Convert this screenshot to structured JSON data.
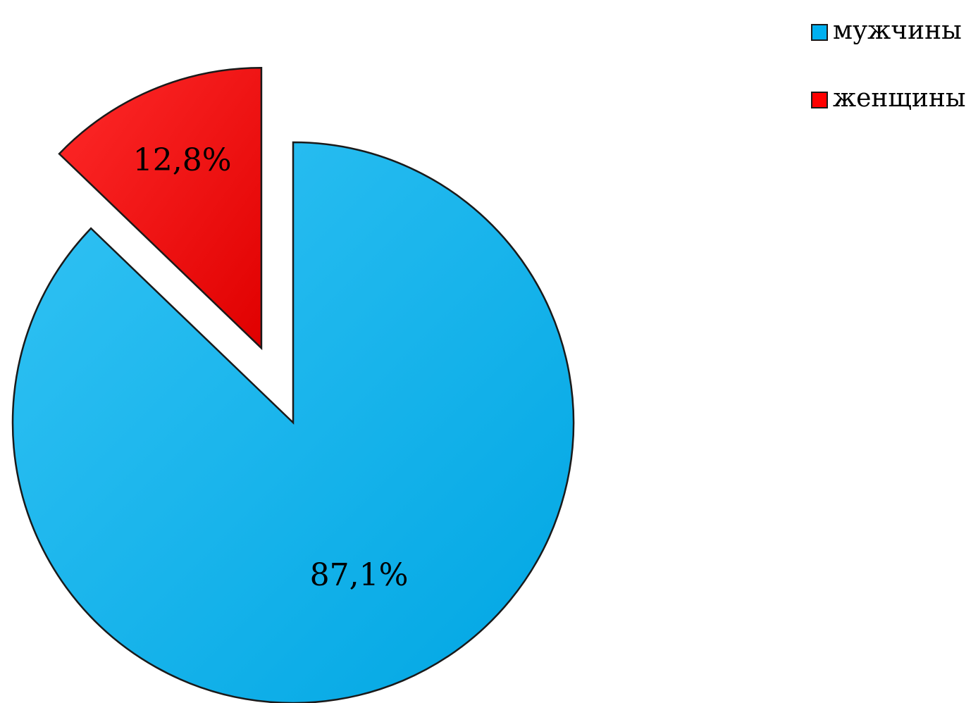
{
  "chart_data": {
    "type": "pie",
    "categories": [
      "мужчины",
      "женщины"
    ],
    "values": [
      87.1,
      12.8
    ],
    "labels": [
      "87,1%",
      "12,8%"
    ],
    "colors": [
      "#00B0F0",
      "#FF0000"
    ],
    "exploded": [
      false,
      true
    ],
    "start_angle_deg": 0,
    "direction": "clockwise",
    "legend": {
      "placement": "top-right",
      "entries": [
        "мужчины",
        "женщины"
      ]
    }
  }
}
